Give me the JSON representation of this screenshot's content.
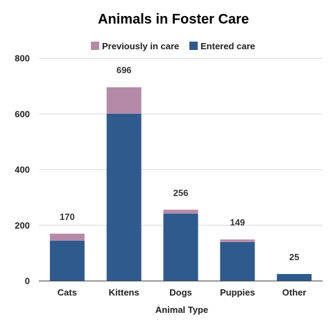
{
  "chart_data": {
    "type": "bar",
    "stacked": true,
    "title": "Animals in Foster Care",
    "xlabel": "Animal Type",
    "ylabel": "",
    "categories": [
      "Cats",
      "Kittens",
      "Dogs",
      "Puppies",
      "Other"
    ],
    "series": [
      {
        "name": "Entered care",
        "values": [
          145,
          601,
          242,
          140,
          25
        ],
        "color": "#2e5a8e"
      },
      {
        "name": "Previously in care",
        "values": [
          25,
          95,
          14,
          9,
          0
        ],
        "color": "#b58aa8"
      }
    ],
    "totals": [
      170,
      696,
      256,
      149,
      25
    ],
    "ylim": [
      0,
      800
    ],
    "yticks": [
      0,
      200,
      400,
      600,
      800
    ],
    "grid": true,
    "legend_position": "top",
    "legend_order": [
      "Previously in care",
      "Entered care"
    ]
  }
}
